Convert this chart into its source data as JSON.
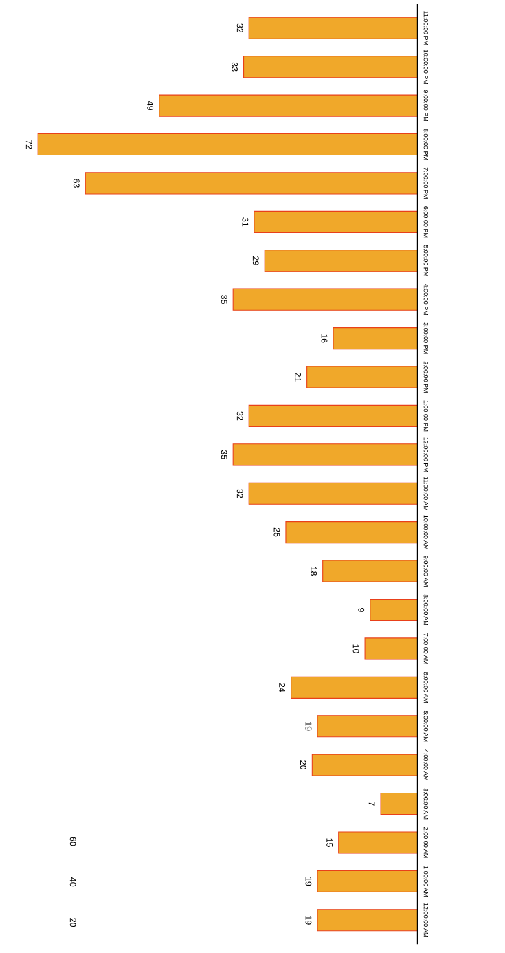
{
  "chart_data": {
    "type": "bar",
    "orientation": "horizontal",
    "categories": [
      "11:00:00 PM",
      "10:00:00 PM",
      "9:00:00 PM",
      "8:00:00 PM",
      "7:00:00 PM",
      "6:00:00 PM",
      "5:00:00 PM",
      "4:00:00 PM",
      "3:00:00 PM",
      "2:00:00 PM",
      "1:00:00 PM",
      "12:00:00 PM",
      "11:00:00 AM",
      "10:00:00 AM",
      "9:00:00 AM",
      "8:00:00 AM",
      "7:00:00 AM",
      "6:00:00 AM",
      "5:00:00 AM",
      "4:00:00 AM",
      "3:00:00 AM",
      "2:00:00 AM",
      "1:00:00 AM",
      "12:00:00 AM"
    ],
    "values": [
      32,
      33,
      49,
      72,
      63,
      31,
      29,
      35,
      16,
      21,
      32,
      35,
      32,
      25,
      18,
      9,
      10,
      24,
      19,
      20,
      7,
      15,
      19,
      19
    ],
    "color": "#f0a82a",
    "data_labels": true,
    "annotations": [
      "60",
      "40",
      "20"
    ]
  }
}
